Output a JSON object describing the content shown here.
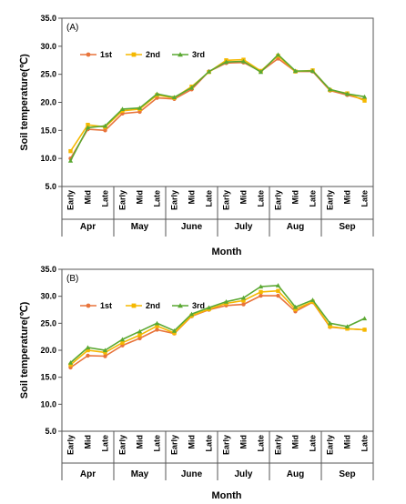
{
  "chart_data": [
    {
      "type": "line",
      "panel_label": "(A)",
      "xlabel": "Month",
      "ylabel": "Soil temperature(℃)",
      "ylim": [
        5.0,
        35.0
      ],
      "yticks": [
        "5.0",
        "10.0",
        "15.0",
        "20.0",
        "25.0",
        "30.0",
        "35.0"
      ],
      "grid": false,
      "legend_position": "top-left",
      "months": [
        "Apr",
        "May",
        "June",
        "July",
        "Aug",
        "Sep"
      ],
      "periods": [
        "Early",
        "Mid",
        "Late"
      ],
      "categories": [
        "Early",
        "Mid",
        "Late",
        "Early",
        "Mid",
        "Late",
        "Early",
        "Mid",
        "Late",
        "Early",
        "Mid",
        "Late",
        "Early",
        "Mid",
        "Late",
        "Early",
        "Mid",
        "Late"
      ],
      "series": [
        {
          "name": "1st",
          "color": "#e8743b",
          "marker": "circle",
          "values": [
            10.0,
            15.2,
            15.0,
            18.0,
            18.3,
            20.8,
            20.6,
            22.3,
            25.5,
            27.0,
            27.1,
            25.5,
            27.8,
            25.5,
            25.5,
            22.1,
            21.3,
            20.5
          ]
        },
        {
          "name": "2nd",
          "color": "#f5b800",
          "marker": "square",
          "values": [
            11.3,
            16.0,
            15.6,
            18.5,
            18.8,
            21.3,
            20.8,
            22.8,
            25.4,
            27.5,
            27.6,
            25.6,
            28.3,
            25.5,
            25.7,
            22.2,
            21.6,
            20.3
          ]
        },
        {
          "name": "3rd",
          "color": "#5aa832",
          "marker": "triangle",
          "values": [
            9.6,
            15.5,
            15.8,
            18.8,
            19.0,
            21.5,
            20.9,
            22.6,
            25.5,
            27.2,
            27.3,
            25.4,
            28.5,
            25.6,
            25.6,
            22.3,
            21.5,
            21.0
          ]
        }
      ]
    },
    {
      "type": "line",
      "panel_label": "(B)",
      "xlabel": "Month",
      "ylabel": "Soil temperature(℃)",
      "ylim": [
        5.0,
        35.0
      ],
      "yticks": [
        "5.0",
        "10.0",
        "15.0",
        "20.0",
        "25.0",
        "30.0",
        "35.0"
      ],
      "grid": false,
      "legend_position": "top-left",
      "months": [
        "Apr",
        "May",
        "June",
        "July",
        "Aug",
        "Sep"
      ],
      "periods": [
        "Early",
        "Mid",
        "Late"
      ],
      "categories": [
        "Early",
        "Mid",
        "Late",
        "Early",
        "Mid",
        "Late",
        "Early",
        "Mid",
        "Late",
        "Early",
        "Mid",
        "Late",
        "Early",
        "Mid",
        "Late",
        "Early",
        "Mid",
        "Late"
      ],
      "series": [
        {
          "name": "1st",
          "color": "#e8743b",
          "marker": "circle",
          "values": [
            16.8,
            19.0,
            18.9,
            20.9,
            22.2,
            23.8,
            23.1,
            26.3,
            27.5,
            28.3,
            28.5,
            30.1,
            30.1,
            27.2,
            28.9,
            24.3,
            24.0,
            23.8
          ]
        },
        {
          "name": "2nd",
          "color": "#f5b800",
          "marker": "square",
          "values": [
            17.3,
            20.0,
            19.6,
            21.4,
            22.8,
            24.5,
            23.2,
            26.4,
            27.6,
            28.7,
            29.2,
            30.8,
            31.0,
            27.6,
            29.0,
            24.4,
            24.0,
            23.8
          ]
        },
        {
          "name": "3rd",
          "color": "#5aa832",
          "marker": "triangle",
          "values": [
            17.7,
            20.5,
            20.0,
            22.0,
            23.5,
            25.0,
            23.6,
            26.7,
            27.9,
            29.0,
            29.7,
            31.8,
            32.0,
            28.0,
            29.3,
            25.0,
            24.4,
            25.9
          ]
        }
      ]
    }
  ]
}
